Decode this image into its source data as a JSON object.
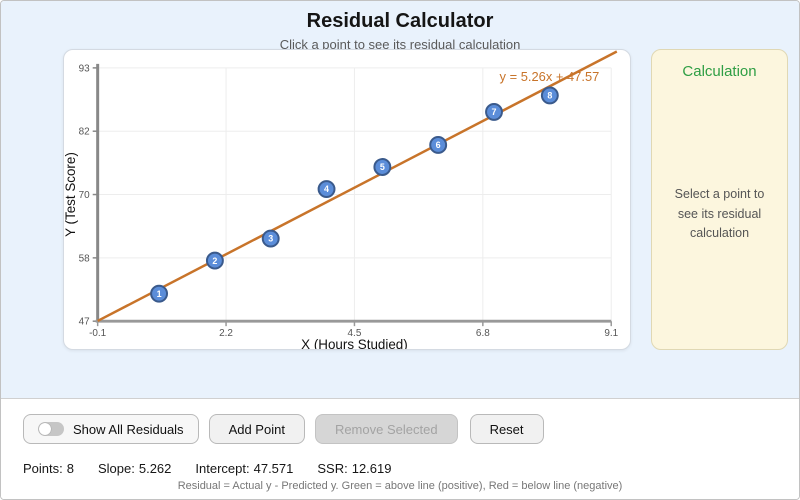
{
  "header": {
    "title": "Residual Calculator",
    "subtitle": "Click a point to see its residual calculation"
  },
  "chart_data": {
    "type": "scatter",
    "xlabel": "X (Hours Studied)",
    "ylabel": "Y (Test Score)",
    "xlim": [
      -0.1,
      9.1
    ],
    "ylim": [
      47,
      93
    ],
    "x_ticks": [
      "-0.1",
      "2.2",
      "4.5",
      "6.8",
      "9.1"
    ],
    "y_ticks": [
      "47",
      "58",
      "70",
      "82",
      "93"
    ],
    "grid": true,
    "points": [
      {
        "label": "1",
        "x": 1,
        "y": 52
      },
      {
        "label": "2",
        "x": 2,
        "y": 58
      },
      {
        "label": "3",
        "x": 3,
        "y": 62
      },
      {
        "label": "4",
        "x": 4,
        "y": 71
      },
      {
        "label": "5",
        "x": 5,
        "y": 75
      },
      {
        "label": "6",
        "x": 6,
        "y": 79
      },
      {
        "label": "7",
        "x": 7,
        "y": 85
      },
      {
        "label": "8",
        "x": 8,
        "y": 88
      }
    ],
    "regression_line": {
      "slope": 5.262,
      "intercept": 47.571,
      "equation_label": "y = 5.26x + 47.57",
      "color": "#c8742a"
    },
    "point_style": {
      "fill": "#5b8dd9",
      "stroke": "#3a5a8c"
    }
  },
  "calculation_panel": {
    "title": "Calculation",
    "title_color": "#2e9e44",
    "placeholder": "Select a point to see its residual calculation"
  },
  "controls": {
    "show_all_residuals": {
      "label": "Show All Residuals",
      "state": "off"
    },
    "add_point": {
      "label": "Add Point"
    },
    "remove_selected": {
      "label": "Remove Selected",
      "disabled": true
    },
    "reset": {
      "label": "Reset"
    }
  },
  "stats": {
    "points": {
      "label": "Points:",
      "value": "8"
    },
    "slope": {
      "label": "Slope:",
      "value": "5.262"
    },
    "intercept": {
      "label": "Intercept:",
      "value": "47.571"
    },
    "ssr": {
      "label": "SSR:",
      "value": "12.619"
    }
  },
  "footer": {
    "note": "Residual = Actual y - Predicted y. Green = above line (positive), Red = below line (negative)"
  }
}
